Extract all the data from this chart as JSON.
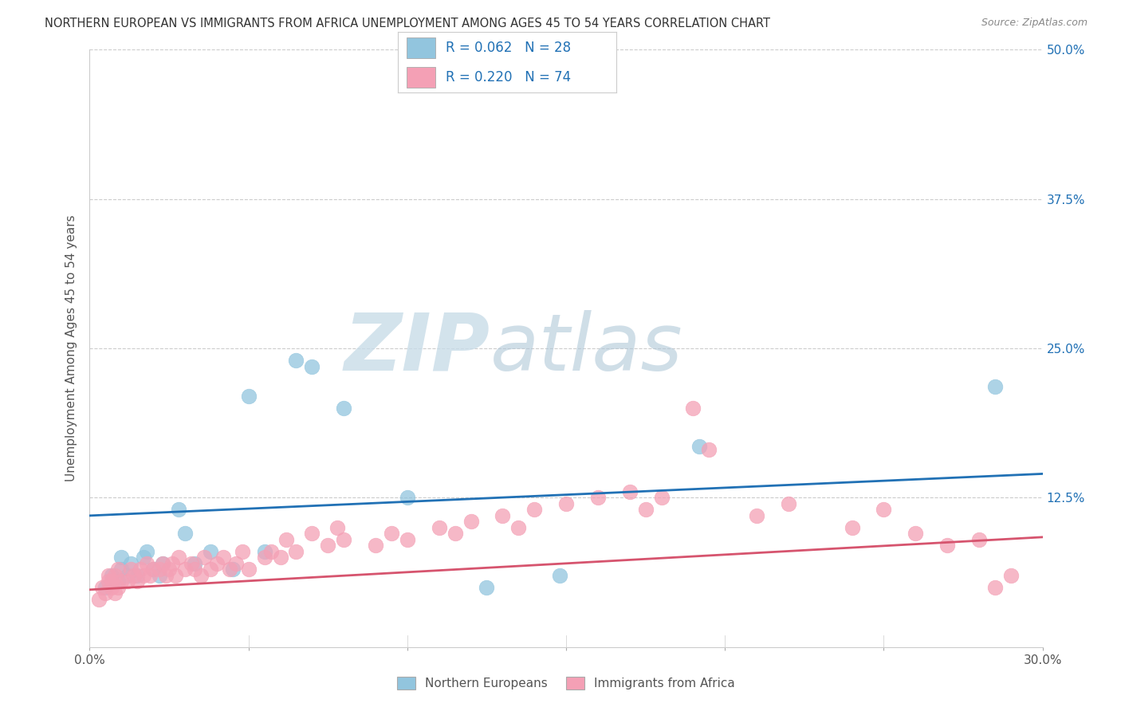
{
  "title": "NORTHERN EUROPEAN VS IMMIGRANTS FROM AFRICA UNEMPLOYMENT AMONG AGES 45 TO 54 YEARS CORRELATION CHART",
  "source": "Source: ZipAtlas.com",
  "ylabel": "Unemployment Among Ages 45 to 54 years",
  "xlim": [
    0.0,
    0.3
  ],
  "ylim": [
    0.0,
    0.5
  ],
  "blue_R": 0.062,
  "blue_N": 28,
  "pink_R": 0.22,
  "pink_N": 74,
  "blue_color": "#92c5de",
  "pink_color": "#f4a0b5",
  "blue_line_color": "#2171b5",
  "pink_line_color": "#d6546e",
  "watermark_zip": "ZIP",
  "watermark_atlas": "atlas",
  "watermark_color": "#d8e8f0",
  "background_color": "#ffffff",
  "grid_color": "#cccccc",
  "legend_label_blue": "Northern Europeans",
  "legend_label_pink": "Immigrants from Africa",
  "blue_scatter_x": [
    0.005,
    0.007,
    0.009,
    0.01,
    0.01,
    0.012,
    0.013,
    0.015,
    0.017,
    0.018,
    0.02,
    0.022,
    0.023,
    0.028,
    0.03,
    0.033,
    0.038,
    0.045,
    0.05,
    0.055,
    0.065,
    0.07,
    0.08,
    0.1,
    0.125,
    0.148,
    0.192,
    0.285
  ],
  "blue_scatter_y": [
    0.05,
    0.06,
    0.055,
    0.065,
    0.075,
    0.06,
    0.07,
    0.06,
    0.075,
    0.08,
    0.065,
    0.06,
    0.07,
    0.115,
    0.095,
    0.07,
    0.08,
    0.065,
    0.21,
    0.08,
    0.24,
    0.235,
    0.2,
    0.125,
    0.05,
    0.06,
    0.168,
    0.218
  ],
  "pink_scatter_x": [
    0.003,
    0.004,
    0.005,
    0.006,
    0.006,
    0.007,
    0.007,
    0.008,
    0.008,
    0.009,
    0.009,
    0.01,
    0.012,
    0.013,
    0.014,
    0.015,
    0.016,
    0.017,
    0.018,
    0.019,
    0.02,
    0.022,
    0.023,
    0.024,
    0.025,
    0.026,
    0.027,
    0.028,
    0.03,
    0.032,
    0.033,
    0.035,
    0.036,
    0.038,
    0.04,
    0.042,
    0.044,
    0.046,
    0.048,
    0.05,
    0.055,
    0.057,
    0.06,
    0.062,
    0.065,
    0.07,
    0.075,
    0.078,
    0.08,
    0.09,
    0.095,
    0.1,
    0.11,
    0.115,
    0.12,
    0.13,
    0.135,
    0.14,
    0.15,
    0.16,
    0.17,
    0.175,
    0.18,
    0.19,
    0.195,
    0.21,
    0.22,
    0.24,
    0.25,
    0.26,
    0.27,
    0.28,
    0.285,
    0.29
  ],
  "pink_scatter_y": [
    0.04,
    0.05,
    0.045,
    0.055,
    0.06,
    0.05,
    0.055,
    0.045,
    0.06,
    0.05,
    0.065,
    0.055,
    0.055,
    0.065,
    0.06,
    0.055,
    0.065,
    0.06,
    0.07,
    0.06,
    0.065,
    0.065,
    0.07,
    0.06,
    0.065,
    0.07,
    0.06,
    0.075,
    0.065,
    0.07,
    0.065,
    0.06,
    0.075,
    0.065,
    0.07,
    0.075,
    0.065,
    0.07,
    0.08,
    0.065,
    0.075,
    0.08,
    0.075,
    0.09,
    0.08,
    0.095,
    0.085,
    0.1,
    0.09,
    0.085,
    0.095,
    0.09,
    0.1,
    0.095,
    0.105,
    0.11,
    0.1,
    0.115,
    0.12,
    0.125,
    0.13,
    0.115,
    0.125,
    0.2,
    0.165,
    0.11,
    0.12,
    0.1,
    0.115,
    0.095,
    0.085,
    0.09,
    0.05,
    0.06
  ],
  "blue_trend_x": [
    0.0,
    0.3
  ],
  "blue_trend_y": [
    0.11,
    0.145
  ],
  "pink_trend_x": [
    0.0,
    0.3
  ],
  "pink_trend_y": [
    0.048,
    0.092
  ]
}
